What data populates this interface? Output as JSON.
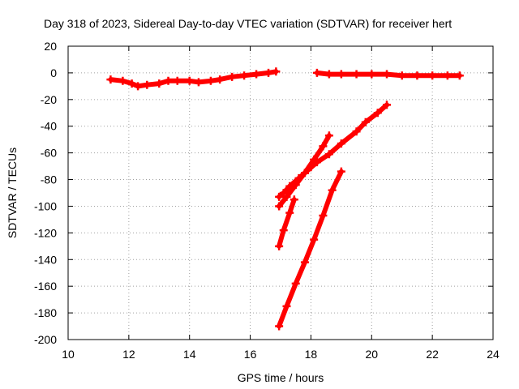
{
  "chart_data": {
    "type": "scatter",
    "title": "Day 318 of 2023, Sidereal Day-to-day VTEC variation (SDTVAR) for receiver hert",
    "xlabel": "GPS time / hours",
    "ylabel": "SDTVAR / TECUs",
    "xlim": [
      10,
      24
    ],
    "ylim": [
      -200,
      20
    ],
    "x_ticks": [
      10,
      12,
      14,
      16,
      18,
      20,
      22,
      24
    ],
    "y_ticks": [
      -200,
      -180,
      -160,
      -140,
      -120,
      -100,
      -80,
      -60,
      -40,
      -20,
      0,
      20
    ],
    "grid": true,
    "legend": "none",
    "color": "#ff0000",
    "series": [
      {
        "x": [
          11.4,
          11.8,
          12.1,
          12.3,
          12.6,
          13.0,
          13.3,
          13.6,
          14.0,
          14.3,
          14.7,
          15.0,
          15.4,
          15.8,
          16.2,
          16.6,
          16.85
        ],
        "y": [
          -5,
          -6,
          -8,
          -10,
          -9,
          -8,
          -6,
          -6,
          -6,
          -7,
          -6,
          -5,
          -3,
          -2,
          -1,
          0,
          1
        ]
      },
      {
        "x": [
          18.2,
          18.6,
          19.0,
          19.5,
          20.0,
          20.5,
          21.0,
          21.5,
          22.0,
          22.5,
          22.9
        ],
        "y": [
          0,
          -1,
          -1,
          -1,
          -1,
          -1,
          -2,
          -2,
          -2,
          -2,
          -2
        ]
      },
      {
        "x": [
          16.95,
          17.1,
          17.3,
          17.6,
          17.9,
          18.2,
          18.6,
          19.0,
          19.5,
          19.8,
          20.2,
          20.5
        ],
        "y": [
          -93,
          -90,
          -85,
          -79,
          -73,
          -67,
          -61,
          -53,
          -44,
          -37,
          -30,
          -24
        ]
      },
      {
        "x": [
          16.95,
          17.2,
          17.5,
          17.8,
          18.1,
          18.4,
          18.6
        ],
        "y": [
          -100,
          -93,
          -84,
          -75,
          -65,
          -55,
          -47
        ]
      },
      {
        "x": [
          16.95,
          17.1,
          17.3,
          17.45
        ],
        "y": [
          -130,
          -118,
          -105,
          -95
        ]
      },
      {
        "x": [
          16.95,
          17.2,
          17.5,
          17.8,
          18.1,
          18.4,
          18.7,
          19.0
        ],
        "y": [
          -190,
          -175,
          -158,
          -142,
          -125,
          -107,
          -88,
          -74
        ]
      }
    ]
  }
}
